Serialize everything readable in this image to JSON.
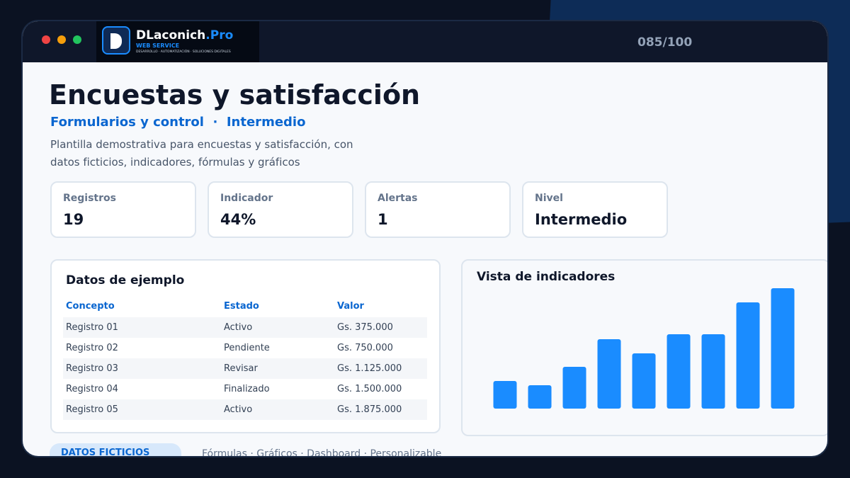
{
  "header": {
    "brand": "DLaconich",
    "brand_suffix": ".Pro",
    "brand_sub": "WEB SERVICE",
    "brand_tagline": "DESARROLLO · AUTOMATIZACIÓN · SOLUCIONES DIGITALES",
    "counter": "085/100"
  },
  "title": "Encuestas y satisfacción",
  "subtitle": "Formularios y control  ·  Intermedio",
  "description": [
    "Plantilla demostrativa para encuestas y satisfacción, con",
    "datos ficticios, indicadores, fórmulas y gráficos"
  ],
  "stats": [
    {
      "label": "Registros",
      "value": "19"
    },
    {
      "label": "Indicador",
      "value": "44%"
    },
    {
      "label": "Alertas",
      "value": "1"
    },
    {
      "label": "Nivel",
      "value": "Intermedio"
    }
  ],
  "table": {
    "title": "Datos de ejemplo",
    "columns": [
      "Concepto",
      "Estado",
      "Valor"
    ],
    "rows": [
      [
        "Registro 01",
        "Activo",
        "Gs. 375.000"
      ],
      [
        "Registro 02",
        "Pendiente",
        "Gs. 750.000"
      ],
      [
        "Registro 03",
        "Revisar",
        "Gs. 1.125.000"
      ],
      [
        "Registro 04",
        "Finalizado",
        "Gs. 1.500.000"
      ],
      [
        "Registro 05",
        "Activo",
        "Gs. 1.875.000"
      ]
    ]
  },
  "chart_data": {
    "type": "bar",
    "title": "Vista de indicadores",
    "values": [
      39,
      33,
      59,
      98,
      78,
      105,
      105,
      150,
      170
    ],
    "color": "#1a8cff"
  },
  "footer": {
    "badge": "DATOS FICTICIOS",
    "tags": "Fórmulas · Gráficos · Dashboard · Personalizable"
  }
}
